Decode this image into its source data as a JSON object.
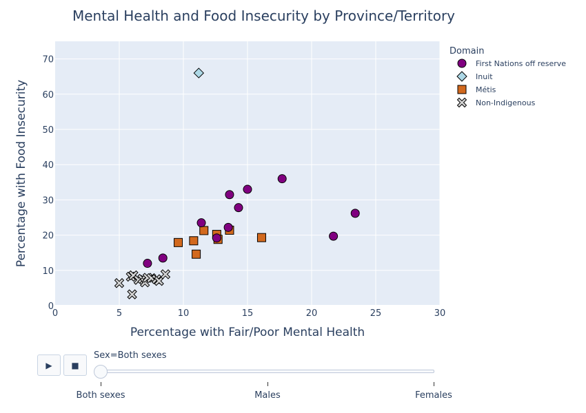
{
  "chart_data": {
    "type": "scatter",
    "title": "Mental Health and Food Insecurity by Province/Territory",
    "xlabel": "Percentage with Fair/Poor Mental Health",
    "ylabel": "Percentage with Food Insecurity",
    "xlim": [
      0,
      30
    ],
    "ylim": [
      0,
      75
    ],
    "xticks": [
      0,
      5,
      10,
      15,
      20,
      25,
      30
    ],
    "yticks": [
      0,
      10,
      20,
      30,
      40,
      50,
      60,
      70
    ],
    "grid": true,
    "legend_title": "Domain",
    "legend_position": "top-right",
    "series": [
      {
        "name": "First Nations off reserve",
        "marker": "circle",
        "color": "#800080",
        "points": [
          [
            7.2,
            12.0
          ],
          [
            8.4,
            13.5
          ],
          [
            11.4,
            23.5
          ],
          [
            12.6,
            19.2
          ],
          [
            13.5,
            22.2
          ],
          [
            13.6,
            31.5
          ],
          [
            14.3,
            27.8
          ],
          [
            15.0,
            33.0
          ],
          [
            17.7,
            36.0
          ],
          [
            21.7,
            19.7
          ],
          [
            23.4,
            26.2
          ]
        ]
      },
      {
        "name": "Inuit",
        "marker": "diamond",
        "color": "#add8e6",
        "points": [
          [
            11.2,
            66.0
          ]
        ]
      },
      {
        "name": "Métis",
        "marker": "square",
        "color": "#d2691e",
        "points": [
          [
            9.6,
            17.9
          ],
          [
            10.8,
            18.4
          ],
          [
            11.0,
            14.6
          ],
          [
            11.6,
            21.3
          ],
          [
            12.6,
            20.2
          ],
          [
            12.7,
            18.8
          ],
          [
            13.6,
            21.4
          ],
          [
            16.1,
            19.3
          ]
        ]
      },
      {
        "name": "Non-Indigenous",
        "marker": "x",
        "color": "#d3d3d3",
        "points": [
          [
            5.0,
            6.4
          ],
          [
            5.9,
            8.2
          ],
          [
            6.1,
            8.6
          ],
          [
            6.0,
            3.2
          ],
          [
            6.5,
            7.3
          ],
          [
            6.8,
            7.6
          ],
          [
            7.0,
            6.6
          ],
          [
            7.2,
            7.9
          ],
          [
            7.5,
            7.8
          ],
          [
            7.9,
            7.5
          ],
          [
            8.1,
            7.0
          ],
          [
            8.6,
            8.9
          ]
        ]
      }
    ]
  },
  "controls": {
    "play_symbol": "▶",
    "stop_symbol": "■",
    "current_label": "Sex=Both sexes",
    "steps": [
      "Both sexes",
      "Males",
      "Females"
    ],
    "active_step": 0
  }
}
